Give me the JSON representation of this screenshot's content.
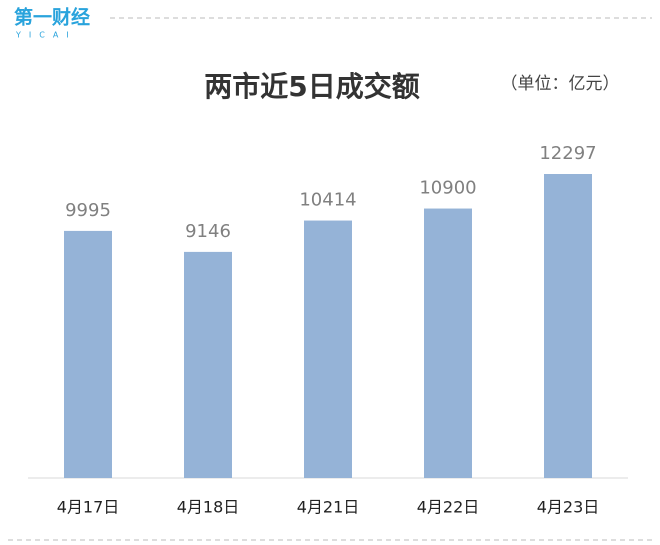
{
  "logo": {
    "name": "第一财经",
    "sub": "YICAI"
  },
  "chart_data": {
    "type": "bar",
    "title": "两市近5日成交额",
    "unit": "（单位：亿元）",
    "categories": [
      "4月17日",
      "4月18日",
      "4月21日",
      "4月22日",
      "4月23日"
    ],
    "values": [
      9995,
      9146,
      10414,
      10900,
      12297
    ],
    "color": "#95b3d7"
  }
}
